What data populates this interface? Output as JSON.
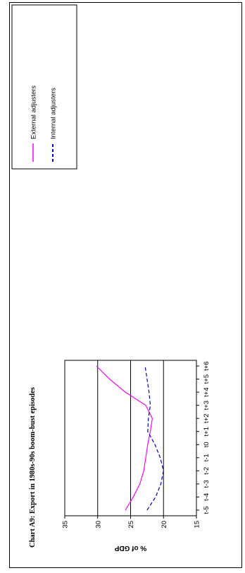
{
  "chart_data": {
    "type": "line",
    "title": "Chart A9: Export in 1980s-90s boom-bust episodes",
    "ylabel": "% of GDP",
    "xlabel": "",
    "categories": [
      "t-5",
      "t-4",
      "t-3",
      "t-2",
      "t-1",
      "t0",
      "t+1",
      "t+2",
      "t+3",
      "t+4",
      "t+5",
      "t+6"
    ],
    "ylim": [
      15,
      35
    ],
    "yticks": [
      15,
      20,
      25,
      30,
      35
    ],
    "grid": "major y at 20, 25, 30",
    "legend_position": "top-right",
    "series": [
      {
        "name": "External adjusters",
        "color": "#ff00ff",
        "style": "solid",
        "values": [
          25.8,
          24.6,
          23.6,
          23.0,
          22.7,
          22.4,
          22.0,
          21.7,
          22.7,
          25.8,
          28.2,
          30.2
        ]
      },
      {
        "name": "Internal adjusters",
        "color": "#0000cc",
        "style": "dashed",
        "values": [
          22.5,
          21.2,
          20.4,
          20.0,
          20.5,
          21.3,
          22.4,
          22.3,
          22.0,
          22.2,
          22.5,
          22.8
        ]
      }
    ]
  }
}
